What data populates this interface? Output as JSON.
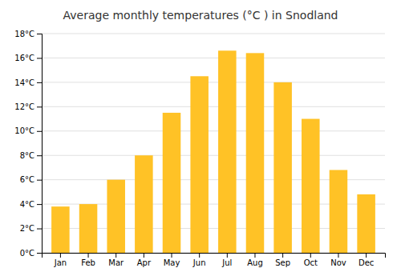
{
  "chart_data": {
    "type": "bar",
    "title": "Average monthly temperatures (°C ) in Snodland",
    "categories": [
      "Jan",
      "Feb",
      "Mar",
      "Apr",
      "May",
      "Jun",
      "Jul",
      "Aug",
      "Sep",
      "Oct",
      "Nov",
      "Dec"
    ],
    "values": [
      3.8,
      4.0,
      6.0,
      8.0,
      11.5,
      14.5,
      16.6,
      16.4,
      14.0,
      11.0,
      6.8,
      4.8
    ],
    "color": "#FFC226",
    "ylim": [
      0,
      18
    ],
    "yticks": [
      {
        "value": 0,
        "label": "0°C"
      },
      {
        "value": 2,
        "label": "2°C"
      },
      {
        "value": 4,
        "label": "4°C"
      },
      {
        "value": 6,
        "label": "6°C"
      },
      {
        "value": 8,
        "label": "8°C"
      },
      {
        "value": 10,
        "label": "10°C"
      },
      {
        "value": 12,
        "label": "12°C"
      },
      {
        "value": 14,
        "label": "14°C"
      },
      {
        "value": 16,
        "label": "16°C"
      },
      {
        "value": 18,
        "label": "18°C"
      }
    ],
    "grid": true
  }
}
